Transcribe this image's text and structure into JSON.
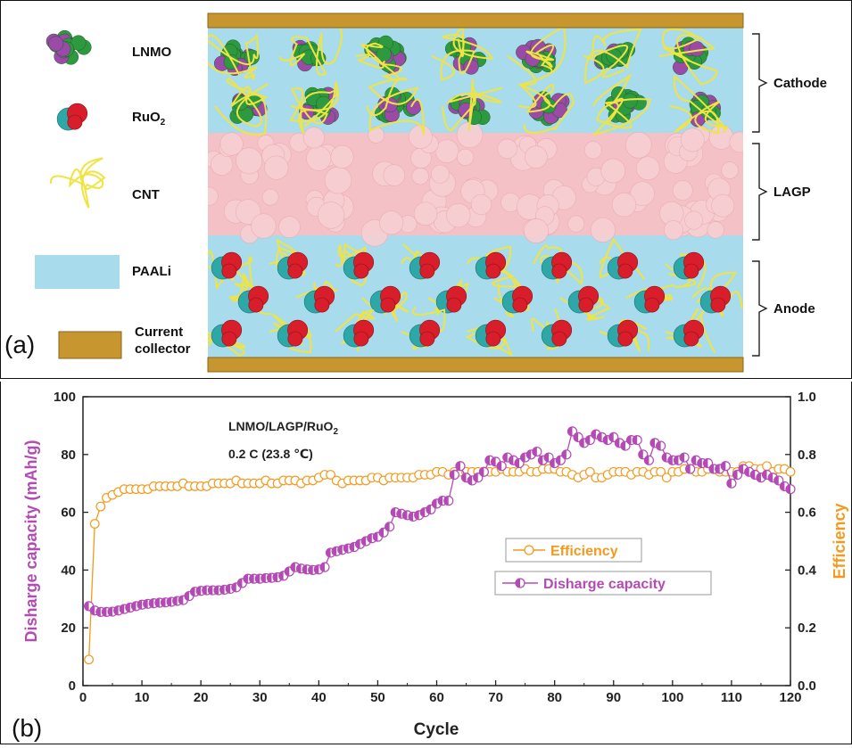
{
  "panel_a": {
    "panel_label": "(a)",
    "legend": [
      {
        "key": "lnmo",
        "label": "LNMO",
        "sub": ""
      },
      {
        "key": "ruo2",
        "label": "RuO",
        "sub": "2"
      },
      {
        "key": "cnt",
        "label": "CNT",
        "sub": ""
      },
      {
        "key": "paali",
        "label": "PAALi",
        "sub": ""
      },
      {
        "key": "collector",
        "label": "Current",
        "label2": "collector",
        "sub": ""
      }
    ],
    "layers": [
      {
        "key": "cathode",
        "label": "Cathode"
      },
      {
        "key": "lagp",
        "label": "LAGP"
      },
      {
        "key": "anode",
        "label": "Anode"
      }
    ],
    "colors": {
      "collector": "#c8962e",
      "paali": "#a8dcec",
      "lagp": "#f4c2c6",
      "cnt": "#f0e442",
      "lnmo_green": "#2e9a40",
      "lnmo_purple": "#9b4aa8",
      "ru_red": "#d81e2a",
      "ru_teal": "#2ea7a8"
    }
  },
  "panel_b": {
    "panel_label": "(b)",
    "annotation_line1": "LNMO/LAGP/RuO",
    "annotation_line1_sub": "2",
    "annotation_line2": "0.2 C (23.8 ℃)"
  },
  "chart_data": {
    "type": "line",
    "xlabel": "Cycle",
    "ylabel_left": "Disharge capacity (mAh/g)",
    "ylabel_right": "Efficiency",
    "xlim": [
      0,
      120
    ],
    "ylim_left": [
      0,
      100
    ],
    "ylim_right": [
      0.0,
      1.0
    ],
    "x_ticks": [
      0,
      10,
      20,
      30,
      40,
      50,
      60,
      70,
      80,
      90,
      100,
      110,
      120
    ],
    "y_left_ticks": [
      0,
      20,
      40,
      60,
      80,
      100
    ],
    "y_right_ticks": [
      "0.0",
      "0.2",
      "0.4",
      "0.6",
      "0.8",
      "1.0"
    ],
    "legend_position": "center-right",
    "series": [
      {
        "name": "Efficiency",
        "axis": "right",
        "color": "#f39a1e",
        "marker": "open-circle",
        "x": [
          1,
          2,
          3,
          4,
          5,
          6,
          7,
          8,
          9,
          10,
          11,
          12,
          13,
          14,
          15,
          16,
          17,
          18,
          19,
          20,
          21,
          22,
          23,
          24,
          25,
          26,
          27,
          28,
          29,
          30,
          31,
          32,
          33,
          34,
          35,
          36,
          37,
          38,
          39,
          40,
          41,
          42,
          43,
          44,
          45,
          46,
          47,
          48,
          49,
          50,
          51,
          52,
          53,
          54,
          55,
          56,
          57,
          58,
          59,
          60,
          61,
          62,
          63,
          64,
          65,
          66,
          67,
          68,
          69,
          70,
          71,
          72,
          73,
          74,
          75,
          76,
          77,
          78,
          79,
          80,
          81,
          82,
          83,
          84,
          85,
          86,
          87,
          88,
          89,
          90,
          91,
          92,
          93,
          94,
          95,
          96,
          97,
          98,
          99,
          100,
          101,
          102,
          103,
          104,
          105,
          106,
          107,
          108,
          109,
          110,
          111,
          112,
          113,
          114,
          115,
          116,
          117,
          118,
          119,
          120
        ],
        "values": [
          0.09,
          0.56,
          0.62,
          0.65,
          0.66,
          0.67,
          0.68,
          0.68,
          0.68,
          0.68,
          0.68,
          0.69,
          0.69,
          0.69,
          0.69,
          0.69,
          0.7,
          0.69,
          0.69,
          0.69,
          0.69,
          0.7,
          0.7,
          0.7,
          0.7,
          0.71,
          0.7,
          0.7,
          0.7,
          0.7,
          0.71,
          0.7,
          0.7,
          0.71,
          0.71,
          0.71,
          0.7,
          0.71,
          0.71,
          0.72,
          0.73,
          0.73,
          0.71,
          0.7,
          0.71,
          0.71,
          0.71,
          0.71,
          0.72,
          0.72,
          0.71,
          0.72,
          0.72,
          0.72,
          0.72,
          0.72,
          0.73,
          0.73,
          0.73,
          0.74,
          0.74,
          0.73,
          0.74,
          0.74,
          0.74,
          0.74,
          0.74,
          0.74,
          0.74,
          0.74,
          0.75,
          0.74,
          0.74,
          0.74,
          0.75,
          0.74,
          0.74,
          0.75,
          0.75,
          0.75,
          0.74,
          0.74,
          0.73,
          0.72,
          0.73,
          0.74,
          0.72,
          0.72,
          0.73,
          0.74,
          0.74,
          0.74,
          0.73,
          0.74,
          0.74,
          0.73,
          0.74,
          0.74,
          0.72,
          0.74,
          0.74,
          0.75,
          0.75,
          0.74,
          0.74,
          0.75,
          0.75,
          0.74,
          0.74,
          0.74,
          0.74,
          0.76,
          0.76,
          0.75,
          0.75,
          0.76,
          0.74,
          0.75,
          0.75,
          0.74
        ]
      },
      {
        "name": "Disharge capacity",
        "axis": "left",
        "color": "#b44bb4",
        "marker": "half-filled-circle",
        "x": [
          1,
          2,
          3,
          4,
          5,
          6,
          7,
          8,
          9,
          10,
          11,
          12,
          13,
          14,
          15,
          16,
          17,
          18,
          19,
          20,
          21,
          22,
          23,
          24,
          25,
          26,
          27,
          28,
          29,
          30,
          31,
          32,
          33,
          34,
          35,
          36,
          37,
          38,
          39,
          40,
          41,
          42,
          43,
          44,
          45,
          46,
          47,
          48,
          49,
          50,
          51,
          52,
          53,
          54,
          55,
          56,
          57,
          58,
          59,
          60,
          61,
          62,
          63,
          64,
          65,
          66,
          67,
          68,
          69,
          70,
          71,
          72,
          73,
          74,
          75,
          76,
          77,
          78,
          79,
          80,
          81,
          82,
          83,
          84,
          85,
          86,
          87,
          88,
          89,
          90,
          91,
          92,
          93,
          94,
          95,
          96,
          97,
          98,
          99,
          100,
          101,
          102,
          103,
          104,
          105,
          106,
          107,
          108,
          109,
          110,
          111,
          112,
          113,
          114,
          115,
          116,
          117,
          118,
          119,
          120
        ],
        "values": [
          27.5,
          26,
          25.5,
          25.5,
          25.6,
          26,
          26.5,
          27,
          27.5,
          28,
          28.3,
          28.5,
          28.7,
          28.8,
          29,
          29.3,
          29.6,
          31,
          32.5,
          32.8,
          33,
          33,
          33,
          33.2,
          33.5,
          34,
          35.5,
          37,
          37,
          37,
          37.2,
          37.3,
          37.5,
          38,
          39.5,
          41,
          40.5,
          40.2,
          40,
          40.2,
          41,
          46,
          46.5,
          47,
          47.5,
          48,
          49,
          50,
          51,
          51.5,
          53,
          55,
          60,
          59.5,
          59,
          58.5,
          59,
          60,
          61,
          63,
          64,
          64,
          73,
          76,
          72,
          71,
          72,
          74,
          78,
          77.5,
          76,
          79,
          78,
          77,
          79,
          80,
          81,
          78,
          79,
          77,
          78,
          80,
          88,
          86,
          84,
          85,
          87,
          86,
          85,
          86,
          84,
          83,
          85,
          85,
          80,
          78,
          84,
          83,
          79,
          78,
          78,
          79,
          75,
          78,
          77,
          77,
          75,
          75,
          76,
          70,
          73,
          75,
          74,
          73,
          72,
          73,
          72,
          71,
          69,
          68
        ]
      }
    ]
  }
}
